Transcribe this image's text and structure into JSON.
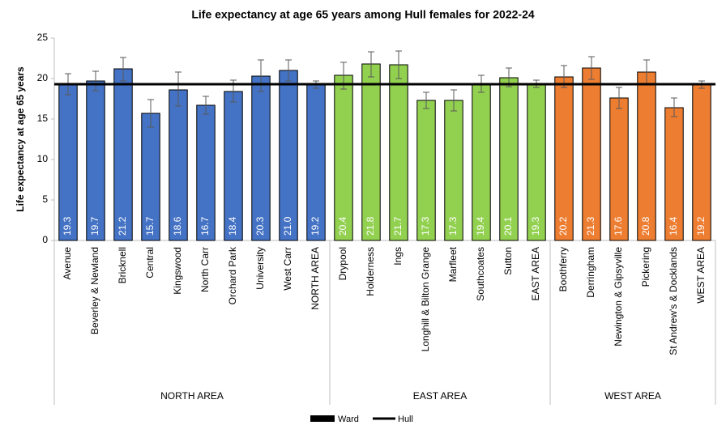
{
  "chart_data": {
    "type": "bar",
    "title": "Life expectancy at age 65 years among Hull females for 2022-24",
    "y_label": "Life expectancy at age 65 years",
    "ylim": [
      0,
      25
    ],
    "yticks": [
      0,
      5,
      10,
      15,
      20,
      25
    ],
    "bar_legend": "Ward",
    "reference": {
      "name": "Hull",
      "value": 19.3,
      "color": "#000000"
    },
    "groups": [
      {
        "label": "NORTH AREA",
        "color": "#4472c4",
        "categories": [
          "Avenue",
          "Beverley & Newland",
          "Bricknell",
          "Central",
          "Kingswood",
          "North Carr",
          "Orchard Park",
          "University",
          "West Carr",
          "NORTH AREA"
        ],
        "values": [
          19.3,
          19.7,
          21.2,
          15.7,
          18.6,
          16.7,
          18.4,
          20.3,
          21.0,
          19.2
        ],
        "value_labels": [
          "19.3",
          "19.7",
          "21.2",
          "15.7",
          "18.6",
          "16.7",
          "18.4",
          "20.3",
          "21.0",
          "19.2"
        ],
        "lower": [
          18.0,
          18.5,
          19.7,
          14.0,
          16.6,
          15.6,
          17.1,
          18.4,
          19.7,
          18.8
        ],
        "upper": [
          20.6,
          20.9,
          22.6,
          17.4,
          20.8,
          17.8,
          19.8,
          22.3,
          22.3,
          19.7
        ]
      },
      {
        "label": "EAST AREA",
        "color": "#92d050",
        "categories": [
          "Drypool",
          "Holderness",
          "Ings",
          "Longhill & Bilton Grange",
          "Marfleet",
          "Southcoates",
          "Sutton",
          "EAST AREA"
        ],
        "values": [
          20.4,
          21.8,
          21.7,
          17.3,
          17.3,
          19.4,
          20.1,
          19.3
        ],
        "value_labels": [
          "20.4",
          "21.8",
          "21.7",
          "17.3",
          "17.3",
          "19.4",
          "20.1",
          "19.3"
        ],
        "lower": [
          18.7,
          20.2,
          20.0,
          16.3,
          16.0,
          18.3,
          19.0,
          18.9
        ],
        "upper": [
          22.0,
          23.3,
          23.4,
          18.3,
          18.6,
          20.4,
          21.3,
          19.8
        ]
      },
      {
        "label": "WEST AREA",
        "color": "#ed7d31",
        "categories": [
          "Boothferry",
          "Derringham",
          "Newington & Gipsyville",
          "Pickering",
          "St Andrew's & Docklands",
          "WEST AREA"
        ],
        "values": [
          20.2,
          21.3,
          17.6,
          20.8,
          16.4,
          19.2
        ],
        "value_labels": [
          "20.2",
          "21.3",
          "17.6",
          "20.8",
          "16.4",
          "19.2"
        ],
        "lower": [
          18.9,
          19.9,
          16.3,
          19.2,
          15.3,
          18.8
        ],
        "upper": [
          21.6,
          22.7,
          18.9,
          22.3,
          17.6,
          19.7
        ]
      }
    ]
  }
}
